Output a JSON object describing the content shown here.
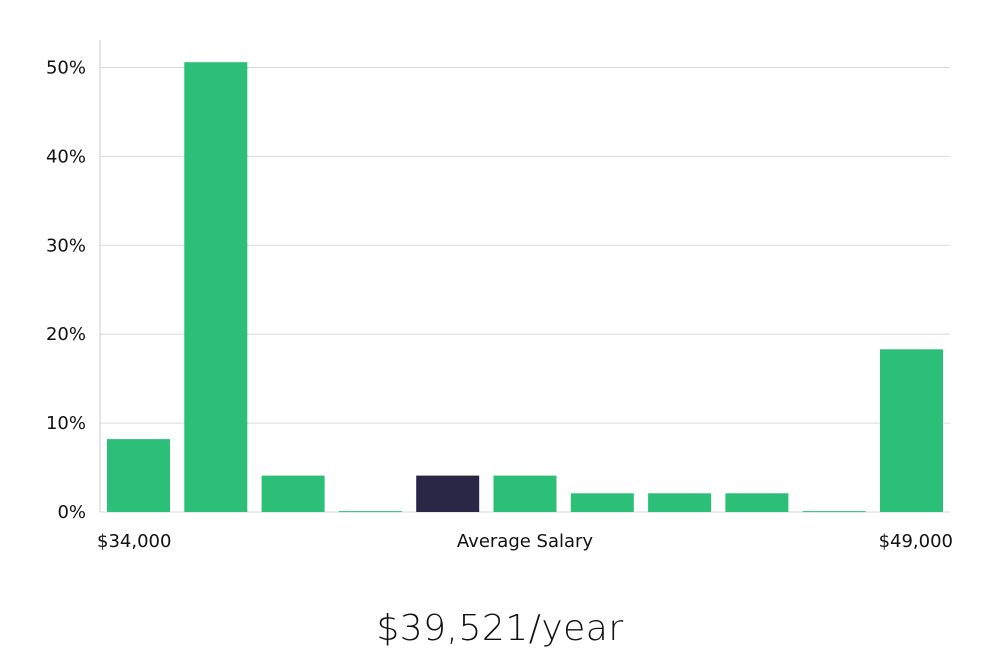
{
  "chart_data": {
    "type": "bar",
    "values": [
      8.2,
      50.6,
      4.1,
      0.1,
      4.1,
      4.1,
      2.1,
      2.1,
      2.1,
      0.1,
      18.3
    ],
    "highlight_index": 4,
    "y_ticks": [
      0,
      10,
      20,
      30,
      40,
      50
    ],
    "y_tick_labels": [
      "0%",
      "10%",
      "20%",
      "30%",
      "40%",
      "50%"
    ],
    "ylim": [
      0,
      53
    ],
    "x_labels": {
      "left": "$34,000",
      "center": "Average Salary",
      "right": "$49,000"
    },
    "grid": true,
    "colors": {
      "bar": "#2bbf77",
      "highlight": "#2a2646",
      "grid": "#d9d9d9",
      "axis": "#cccccc"
    }
  },
  "summary": {
    "salary": "$39,521/year"
  }
}
